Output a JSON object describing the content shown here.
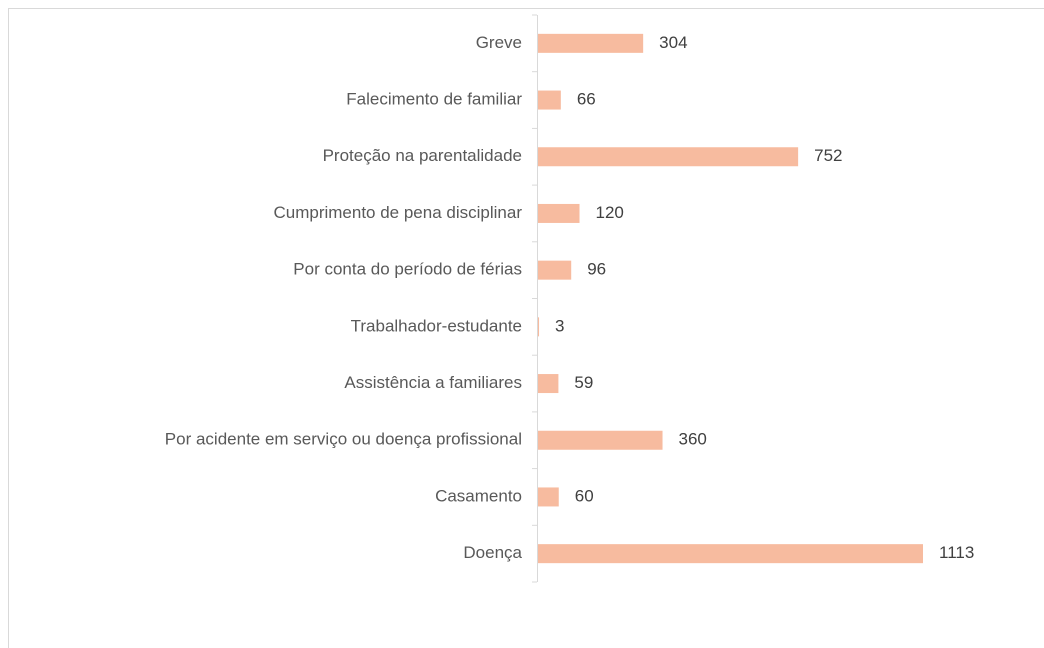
{
  "chart_data": {
    "type": "bar",
    "orientation": "horizontal",
    "categories": [
      "Greve",
      "Falecimento de familiar",
      "Proteção na parentalidade",
      "Cumprimento de pena disciplinar",
      "Por conta do período de férias",
      "Trabalhador-estudante",
      "Assistência a familiares",
      "Por acidente em serviço ou doença profissional",
      "Casamento",
      "Doença"
    ],
    "values": [
      304,
      66,
      752,
      120,
      96,
      3,
      59,
      360,
      60,
      1113
    ],
    "color": "#f7bb9f"
  }
}
